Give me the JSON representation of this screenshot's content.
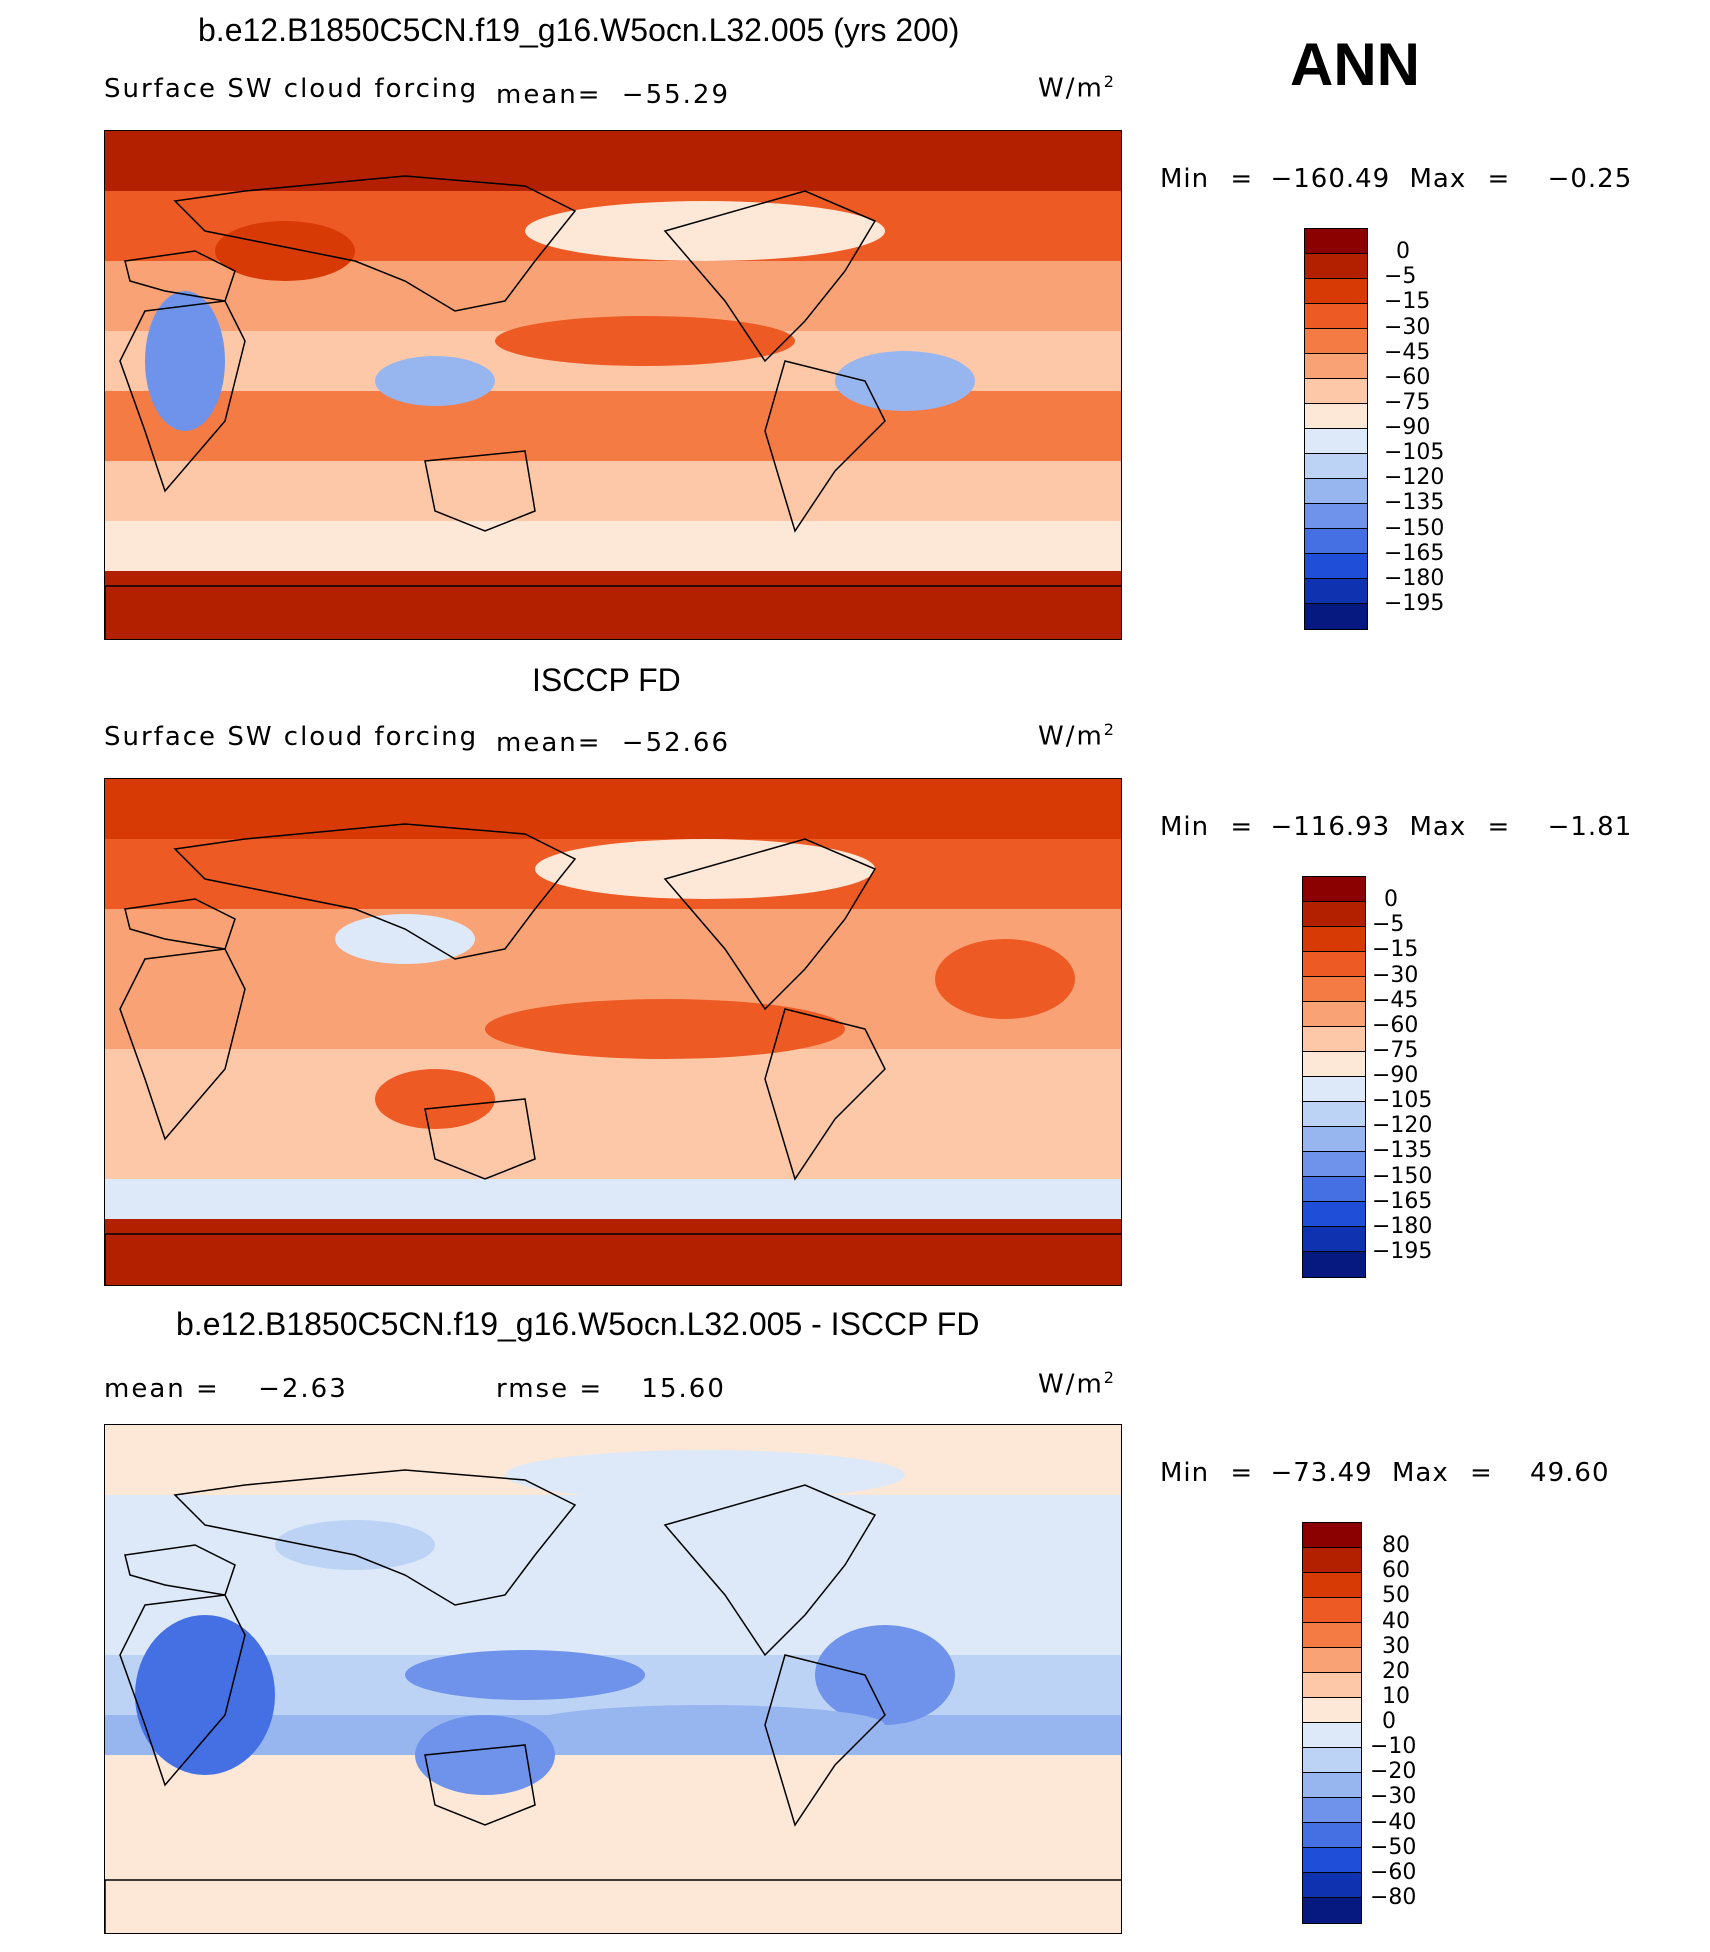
{
  "season": "ANN",
  "panels": [
    {
      "title": "b.e12.B1850C5CN.f19_g16.W5ocn.L32.005 (yrs 200)",
      "variable": "Surface SW cloud forcing",
      "mean_label": "mean=",
      "mean_value": "−55.29",
      "units": "W/m",
      "units_exp": "2",
      "min_label": "Min",
      "min_value": "−160.49",
      "max_label": "Max",
      "max_value": "−0.25"
    },
    {
      "title": "ISCCP FD",
      "variable": "Surface SW cloud forcing",
      "mean_label": "mean=",
      "mean_value": "−52.66",
      "units": "W/m",
      "units_exp": "2",
      "min_label": "Min",
      "min_value": "−116.93",
      "max_label": "Max",
      "max_value": "−1.81"
    },
    {
      "title": "b.e12.B1850C5CN.f19_g16.W5ocn.L32.005 - ISCCP FD",
      "mean_label": "mean =",
      "mean_value": "−2.63",
      "rmse_label": "rmse =",
      "rmse_value": "15.60",
      "units": "W/m",
      "units_exp": "2",
      "min_label": "Min",
      "min_value": "−73.49",
      "max_label": "Max",
      "max_value": "49.60"
    }
  ],
  "chart_data": [
    {
      "type": "heatmap",
      "title": "b.e12.B1850C5CN.f19_g16.W5ocn.L32.005 (yrs 200)",
      "subtitle": "Surface SW cloud forcing",
      "mean": -55.29,
      "min": -160.49,
      "max": -0.25,
      "units": "W/m2",
      "colorbar_levels": [
        "0",
        "−5",
        "−15",
        "−30",
        "−45",
        "−60",
        "−75",
        "−90",
        "−105",
        "−120",
        "−135",
        "−150",
        "−165",
        "−180",
        "−195"
      ],
      "colorbar_colors": [
        "#8b0000",
        "#b22000",
        "#d83a06",
        "#ee5a24",
        "#f57b45",
        "#f9a275",
        "#fcc8a8",
        "#fde7d6",
        "#dde9f8",
        "#bcd3f5",
        "#97b6f0",
        "#6f93ea",
        "#4570e3",
        "#1f4fd9",
        "#0f32b0",
        "#051980"
      ]
    },
    {
      "type": "heatmap",
      "title": "ISCCP FD",
      "subtitle": "Surface SW cloud forcing",
      "mean": -52.66,
      "min": -116.93,
      "max": -1.81,
      "units": "W/m2",
      "colorbar_levels": [
        "0",
        "−5",
        "−15",
        "−30",
        "−45",
        "−60",
        "−75",
        "−90",
        "−105",
        "−120",
        "−135",
        "−150",
        "−165",
        "−180",
        "−195"
      ],
      "colorbar_colors": [
        "#8b0000",
        "#b22000",
        "#d83a06",
        "#ee5a24",
        "#f57b45",
        "#f9a275",
        "#fcc8a8",
        "#fde7d6",
        "#dde9f8",
        "#bcd3f5",
        "#97b6f0",
        "#6f93ea",
        "#4570e3",
        "#1f4fd9",
        "#0f32b0",
        "#051980"
      ]
    },
    {
      "type": "heatmap",
      "title": "b.e12.B1850C5CN.f19_g16.W5ocn.L32.005 - ISCCP FD",
      "mean": -2.63,
      "rmse": 15.6,
      "min": -73.49,
      "max": 49.6,
      "units": "W/m2",
      "colorbar_levels": [
        "80",
        "60",
        "50",
        "40",
        "30",
        "20",
        "10",
        "0",
        "−10",
        "−20",
        "−30",
        "−40",
        "−50",
        "−60",
        "−80"
      ],
      "colorbar_colors": [
        "#8b0000",
        "#b22000",
        "#d83a06",
        "#ee5a24",
        "#f57b45",
        "#f9a275",
        "#fcc8a8",
        "#fde7d6",
        "#dde9f8",
        "#bcd3f5",
        "#97b6f0",
        "#6f93ea",
        "#4570e3",
        "#1f4fd9",
        "#0f32b0",
        "#051980"
      ]
    }
  ]
}
